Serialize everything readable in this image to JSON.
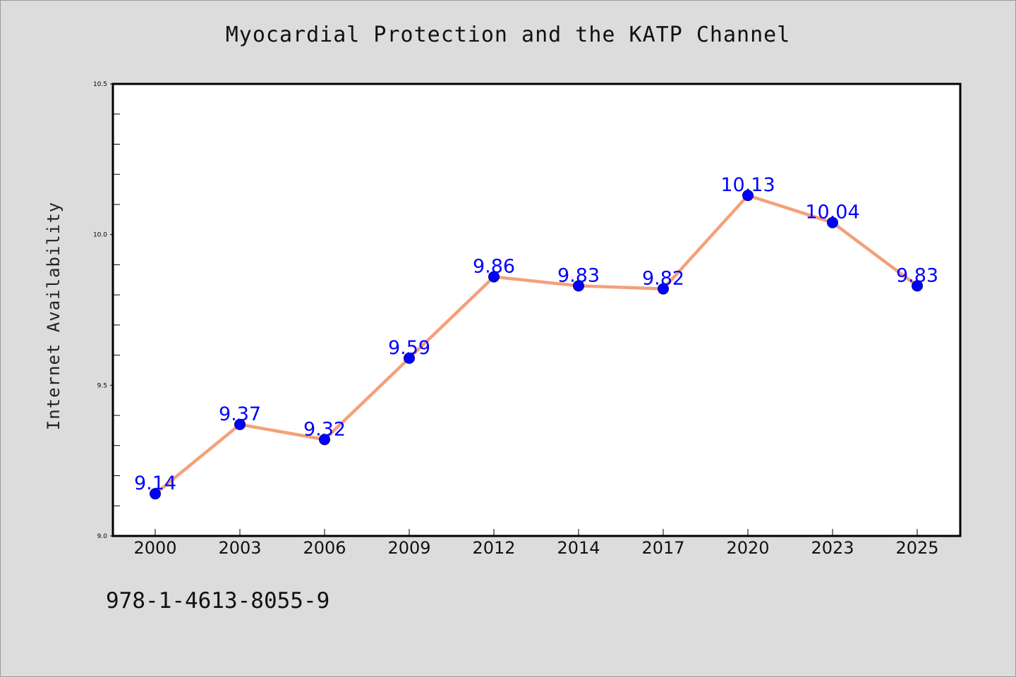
{
  "colors": {
    "background": "#dcdcdc",
    "plot_area": "#ffffff",
    "line": "#f4a07a",
    "marker": "#0000ff",
    "data_label": "#0000ff"
  },
  "footer": {
    "code": "978-1-4613-8055-9"
  },
  "chart_data": {
    "type": "line",
    "title": "Myocardial Protection and the KATP Channel",
    "xlabel": "",
    "ylabel": "Internet Availability",
    "categories": [
      "2000",
      "2003",
      "2006",
      "2009",
      "2012",
      "2014",
      "2017",
      "2020",
      "2023",
      "2025"
    ],
    "series": [
      {
        "values": [
          9.14,
          9.37,
          9.32,
          9.59,
          9.86,
          9.83,
          9.82,
          10.13,
          10.04,
          9.83
        ],
        "labels": [
          "9.14",
          "9.37",
          "9.32",
          "9.59",
          "9.86",
          "9.83",
          "9.82",
          "10.13",
          "10.04",
          "9.83"
        ]
      }
    ],
    "ylim": [
      9.0,
      10.5
    ],
    "yticks": [
      "9.0",
      "9.5",
      "10.0",
      "10.5"
    ],
    "ytick_values": [
      9.0,
      9.5,
      10.0,
      10.5
    ],
    "minor_ytick_step": 0.1,
    "grid": false,
    "legend": "none"
  }
}
